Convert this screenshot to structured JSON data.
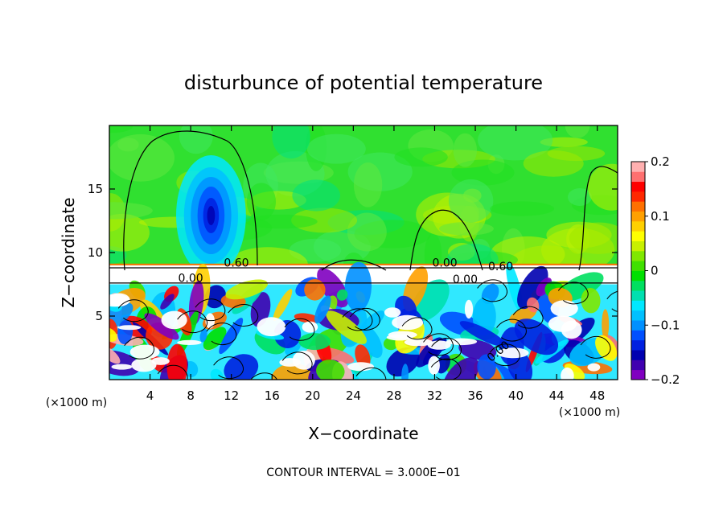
{
  "chart_data": {
    "type": "heatmap",
    "title": "disturbunce of potential temperature",
    "xlabel": "X−coordinate",
    "ylabel": "Z−coordinate",
    "x_unit_left": "(×1000 m)",
    "x_unit_right": "(×1000 m)",
    "xlim": [
      0,
      50
    ],
    "ylim": [
      0,
      20
    ],
    "x_ticks": [
      4,
      8,
      12,
      16,
      20,
      24,
      28,
      32,
      36,
      40,
      44,
      48
    ],
    "x_tick_labels": [
      "4",
      "8",
      "12",
      "16",
      "20",
      "24",
      "28",
      "32",
      "36",
      "40",
      "44",
      "48"
    ],
    "y_ticks": [
      5,
      10,
      15
    ],
    "y_tick_labels": [
      "5",
      "10",
      "15"
    ],
    "colorbar": {
      "min": -0.2,
      "max": 0.2,
      "ticks": [
        0.2,
        0.1,
        0,
        -0.1,
        -0.2
      ],
      "tick_labels": [
        "0.2",
        "0.1",
        "0",
        "−0.1",
        "−0.2"
      ],
      "colors": [
        "#ffb0b0",
        "#ff7070",
        "#ff0000",
        "#ff2800",
        "#ff7000",
        "#ffa000",
        "#ffd000",
        "#ffff00",
        "#c8f000",
        "#80e800",
        "#40e000",
        "#00e000",
        "#00e060",
        "#00e0b0",
        "#00e8ff",
        "#00c0ff",
        "#0090ff",
        "#0050ff",
        "#0020e0",
        "#0000b0",
        "#4000b0",
        "#8000c0"
      ]
    },
    "contour_labels": [
      "0.60",
      "0.00",
      "0.60",
      "0.00",
      "0.00",
      "0.00"
    ],
    "footer": "CONTOUR INTERVAL = 3.000E−01"
  }
}
